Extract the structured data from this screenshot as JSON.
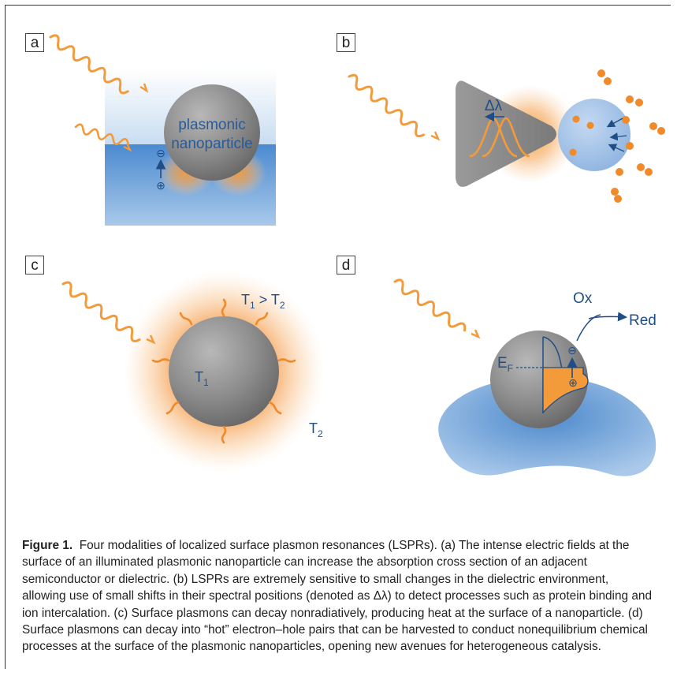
{
  "panels": {
    "a": {
      "label": "a",
      "particle_text_1": "plasmonic",
      "particle_text_2": "nanoparticle",
      "minus": "⊖",
      "plus": "⊕"
    },
    "b": {
      "label": "b",
      "delta_lambda": "Δλ"
    },
    "c": {
      "label": "c",
      "relation_T1": "T",
      "relation_sub1": "1",
      "relation_gt": " > ",
      "relation_T2": "T",
      "relation_sub2": "2",
      "inner_T": "T",
      "inner_sub": "1",
      "outer_T": "T",
      "outer_sub": "2"
    },
    "d": {
      "label": "d",
      "ox": "Ox",
      "red": "Red",
      "fermi_E": "E",
      "fermi_sub": "F",
      "minus": "⊖",
      "plus": "⊕"
    }
  },
  "caption": {
    "title": "Figure 1.",
    "body": "Four modalities of localized surface plasmon resonances (LSPRs). (a) The intense electric fields at the surface of an illuminated plasmonic nanoparticle can increase the absorption cross section of an adjacent semiconductor or dielectric. (b) LSPRs are extremely sensitive to small changes in the dielectric environment, allowing use of small shifts in their spectral positions (denoted as Δλ) to detect processes such as protein binding and ion intercalation. (c) Surface plasmons can decay nonradiatively, producing heat at the surface of a nanoparticle. (d) Surface plasmons can decay into “hot” electron–hole pairs that can be harvested to conduct nonequilibrium chemical processes at the surface of the plasmonic nanoparticles, opening new avenues for heterogeneous catalysis."
  },
  "colors": {
    "orange": "#f39a3a",
    "light_blue": "#cfe0f2",
    "blue": "#4a86c8",
    "dark_blue": "#1f4e86",
    "gray_particle": "#8a8a8a",
    "text_blue": "#2a5a96"
  }
}
